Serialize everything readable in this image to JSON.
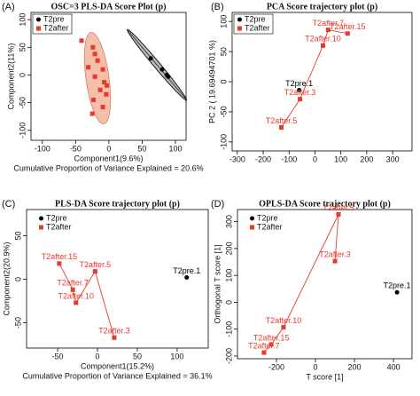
{
  "chart_data": [
    {
      "type": "scatter",
      "panel": "(A)",
      "title": "OSC=3 PLS-DA Score Plot (p)",
      "xlabel": "Component1(9.6%)",
      "subtitle": "Cumulative Proportion of Variance Explained = 20.6%",
      "ylabel": "Component2(11%)",
      "xlim": [
        -117,
        116
      ],
      "ylim": [
        -118,
        113
      ],
      "xticks": [
        -100,
        -50,
        0,
        50,
        100
      ],
      "yticks": [
        -100,
        -50,
        0,
        50,
        100
      ],
      "legend": "top-left",
      "trajectory": false,
      "series": [
        {
          "name": "T2pre",
          "color": "#000000",
          "marker": "circle",
          "x": [
            63,
            80,
            87,
            89
          ],
          "values": [
            30,
            10,
            0,
            -3
          ]
        },
        {
          "name": "T2after",
          "color": "#e8382f",
          "marker": "square",
          "x": [
            -41,
            -24,
            -21,
            -17,
            -31,
            -9,
            -21,
            -7,
            -3,
            -13,
            -4,
            -23,
            -9,
            -25
          ],
          "values": [
            62,
            50,
            38,
            26,
            14,
            10,
            -3,
            -13,
            -19,
            -27,
            -35,
            -45,
            -58,
            -70
          ]
        }
      ]
    },
    {
      "type": "scatter",
      "panel": "(B)",
      "title": "PCA Score trajectory plot (p)",
      "ylabel": "PC 2 ( 19.69494701 %)",
      "xlim": [
        -320,
        375
      ],
      "ylim": [
        -115,
        115
      ],
      "xticks": [
        -300,
        -200,
        -100,
        0,
        100,
        200,
        300
      ],
      "yticks": [
        -100,
        -50,
        0,
        50,
        100
      ],
      "legend": "top-left",
      "trajectory": true,
      "series": [
        {
          "name": "T2pre",
          "color": "#000000",
          "marker": "circle",
          "x": [
            -61
          ],
          "values": [
            -14
          ],
          "labels": [
            "T2pre.1"
          ]
        },
        {
          "name": "T2after",
          "color": "#e8382f",
          "marker": "square",
          "x": [
            -130,
            -58,
            31,
            51,
            126
          ],
          "values": [
            -76,
            -29,
            60,
            86,
            80
          ],
          "labels": [
            "T2after.5",
            "T2after.3",
            "T2after.10",
            "T2after.7",
            "T2after.15"
          ]
        }
      ]
    },
    {
      "type": "scatter",
      "panel": "(C)",
      "title": "PLS-DA Score trajectory plot (p)",
      "xlabel": "Component1(15.2%)",
      "subtitle": "Cumulative Proportion of Variance Explained = 36.1%",
      "ylabel": "Component2(20.9%)",
      "xlim": [
        -89,
        139
      ],
      "ylim": [
        -79,
        80
      ],
      "xticks": [
        -50,
        0,
        50,
        100
      ],
      "yticks": [
        -50,
        0,
        50
      ],
      "legend": "top-left",
      "trajectory": true,
      "series": [
        {
          "name": "T2pre",
          "color": "#000000",
          "marker": "circle",
          "x": [
            112
          ],
          "values": [
            2
          ],
          "labels": [
            "T2pre.1"
          ]
        },
        {
          "name": "T2after",
          "color": "#e8382f",
          "marker": "square",
          "x": [
            -48,
            -31,
            -27,
            -3,
            21
          ],
          "values": [
            18,
            -12,
            -27,
            9,
            -67
          ],
          "labels": [
            "T2after.15",
            "T2after.7",
            "T2after.10",
            "T2after.5",
            "T2after.3"
          ]
        }
      ]
    },
    {
      "type": "scatter",
      "panel": "(D)",
      "title": "OPLS-DA Score trajectory plot (p)",
      "xlabel": "T score [1]",
      "ylabel": "Orthogonal T score [1]",
      "xlim": [
        -400,
        495
      ],
      "ylim": [
        -210,
        345
      ],
      "xticks": [
        -200,
        0,
        200,
        400
      ],
      "yticks": [
        -200,
        -100,
        0,
        100,
        200,
        300
      ],
      "legend": "top-left",
      "trajectory": true,
      "series": [
        {
          "name": "T2pre",
          "color": "#000000",
          "marker": "circle",
          "x": [
            418
          ],
          "values": [
            37
          ],
          "labels": [
            "T2pre.1"
          ]
        },
        {
          "name": "T2after",
          "color": "#e8382f",
          "marker": "square",
          "x": [
            -264,
            -227,
            -164,
            118,
            100
          ],
          "values": [
            -187,
            -157,
            -93,
            327,
            153
          ],
          "labels": [
            "T2after.7",
            "T2after.15",
            "T2after.10",
            "T2after.5",
            "T2after.3"
          ]
        }
      ]
    }
  ]
}
